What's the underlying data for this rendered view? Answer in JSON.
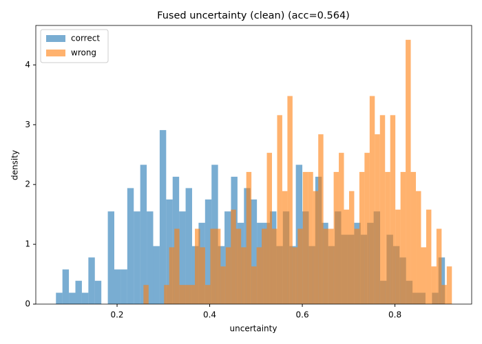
{
  "chart_data": {
    "type": "histogram",
    "title": "Fused uncertainty (clean) (acc=0.564)",
    "x_label": "uncertainty",
    "y_label": "density",
    "xlim": [
      0.0245,
      0.9657
    ],
    "ylim": [
      0,
      4.66
    ],
    "xticks": [
      0.2,
      0.4,
      0.6,
      0.8
    ],
    "yticks": [
      0,
      1,
      2,
      3,
      4
    ],
    "legend": "upper left",
    "opacity": 0.6,
    "series": [
      {
        "name": "correct",
        "color": "#1f77b4",
        "bins": [
          0.068,
          0.082,
          0.096,
          0.11,
          0.124,
          0.138,
          0.152,
          0.166,
          0.18,
          0.194,
          0.208,
          0.222,
          0.236,
          0.25,
          0.264,
          0.278,
          0.292,
          0.306,
          0.32,
          0.334,
          0.348,
          0.362,
          0.376,
          0.39,
          0.404,
          0.418,
          0.432,
          0.446,
          0.46,
          0.474,
          0.488,
          0.502,
          0.516,
          0.53,
          0.544,
          0.558,
          0.572,
          0.586,
          0.6,
          0.614,
          0.628,
          0.642,
          0.656,
          0.67,
          0.684,
          0.698,
          0.712,
          0.726,
          0.74,
          0.754,
          0.768,
          0.782,
          0.796,
          0.81,
          0.824,
          0.838,
          0.852,
          0.866,
          0.88,
          0.894,
          0.908
        ],
        "values": [
          0.19,
          0.58,
          0.19,
          0.39,
          0.19,
          0.78,
          0.39,
          0,
          1.55,
          0.58,
          0.58,
          1.94,
          1.55,
          2.33,
          1.55,
          0.97,
          2.91,
          1.75,
          2.13,
          1.55,
          1.94,
          0.97,
          1.36,
          1.75,
          2.33,
          0.97,
          1.55,
          2.13,
          1.36,
          1.94,
          1.75,
          1.36,
          1.36,
          1.55,
          0.97,
          1.55,
          0.97,
          2.33,
          1.55,
          0.97,
          2.13,
          1.36,
          0.97,
          1.55,
          1.16,
          1.16,
          1.36,
          1.16,
          1.36,
          1.55,
          0.39,
          1.16,
          0.97,
          0.78,
          0.39,
          0.19,
          0.19,
          0,
          0.19,
          0.78
        ]
      },
      {
        "name": "wrong",
        "color": "#ff7f0e",
        "bins": [
          0.257,
          0.2681,
          0.2792,
          0.2903,
          0.3014,
          0.3125,
          0.3236,
          0.3347,
          0.3458,
          0.3569,
          0.368,
          0.3791,
          0.3902,
          0.4013,
          0.4124,
          0.4235,
          0.4346,
          0.4457,
          0.4568,
          0.4679,
          0.479,
          0.4901,
          0.5012,
          0.5123,
          0.5234,
          0.5345,
          0.5456,
          0.5567,
          0.5678,
          0.5789,
          0.59,
          0.6011,
          0.6122,
          0.6233,
          0.6344,
          0.6455,
          0.6566,
          0.6677,
          0.6788,
          0.6899,
          0.701,
          0.7121,
          0.7232,
          0.7343,
          0.7454,
          0.7565,
          0.7676,
          0.7787,
          0.7898,
          0.8009,
          0.812,
          0.8231,
          0.8342,
          0.8453,
          0.8564,
          0.8675,
          0.8786,
          0.8897,
          0.9008,
          0.9119,
          0.923
        ],
        "values": [
          0.32,
          0,
          0,
          0,
          0.32,
          0.95,
          1.26,
          0.32,
          0.32,
          0.32,
          1.26,
          0.95,
          0.32,
          1.26,
          1.26,
          0.63,
          0.95,
          1.58,
          1.26,
          0.95,
          2.21,
          0.63,
          0.95,
          1.26,
          2.53,
          1.26,
          3.16,
          1.89,
          3.48,
          0.95,
          1.26,
          2.21,
          2.21,
          1.89,
          2.84,
          1.26,
          1.26,
          2.21,
          2.53,
          1.58,
          1.89,
          1.26,
          2.21,
          2.53,
          3.48,
          2.84,
          3.16,
          2.21,
          3.16,
          1.58,
          2.21,
          4.42,
          2.21,
          1.89,
          0.95,
          1.58,
          0.63,
          1.26,
          0.32,
          0.63
        ]
      }
    ]
  }
}
